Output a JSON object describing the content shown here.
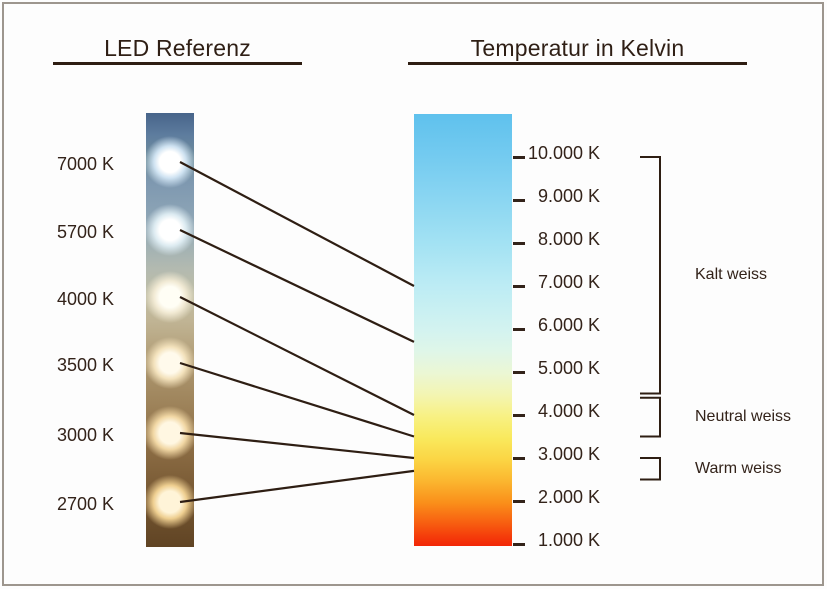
{
  "titles": {
    "left": "LED Referenz",
    "right": "Temperatur in Kelvin"
  },
  "led_reference": {
    "items": [
      {
        "label": "7000 K",
        "kelvin": 7000
      },
      {
        "label": "5700 K",
        "kelvin": 5700
      },
      {
        "label": "4000 K",
        "kelvin": 4000
      },
      {
        "label": "3500 K",
        "kelvin": 3500
      },
      {
        "label": "3000 K",
        "kelvin": 3000
      },
      {
        "label": "2700 K",
        "kelvin": 2700
      }
    ]
  },
  "kelvin_scale": {
    "ticks": [
      {
        "label": "10.000 K",
        "kelvin": 10000
      },
      {
        "label": "9.000 K",
        "kelvin": 9000
      },
      {
        "label": "8.000 K",
        "kelvin": 8000
      },
      {
        "label": "7.000 K",
        "kelvin": 7000
      },
      {
        "label": "6.000 K",
        "kelvin": 6000
      },
      {
        "label": "5.000 K",
        "kelvin": 5000
      },
      {
        "label": "4.000 K",
        "kelvin": 4000
      },
      {
        "label": "3.000 K",
        "kelvin": 3000
      },
      {
        "label": "2.000 K",
        "kelvin": 2000
      },
      {
        "label": "1.000 K",
        "kelvin": 1000
      }
    ],
    "gradient_top_color": "#5fc1ed",
    "gradient_bottom_color": "#f22607"
  },
  "ranges": [
    {
      "label": "Kalt weiss",
      "kelvin_from": 10000,
      "kelvin_to": 4500
    },
    {
      "label": "Neutral weiss",
      "kelvin_from": 4400,
      "kelvin_to": 3500
    },
    {
      "label": "Warm weiss",
      "kelvin_from": 3000,
      "kelvin_to": 2500
    }
  ],
  "colors": {
    "text": "#2f2015",
    "line": "#2e1e13",
    "frame_border": "#9d968e"
  }
}
